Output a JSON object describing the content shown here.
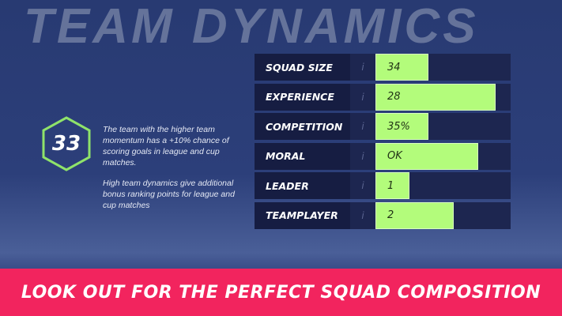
{
  "header": {
    "title": "TEAM DYNAMICS"
  },
  "score": {
    "value": "33",
    "ring_color": "#8fe36a"
  },
  "description": {
    "p1": "The team with the higher team momentum has a +10% chance of scoring goals in league and cup matches.",
    "p2": "High team dynamics give additional bonus ranking points for league and cup matches"
  },
  "stats": [
    {
      "label": "SQUAD SIZE",
      "info": "i",
      "value": "34",
      "fill": 0.39
    },
    {
      "label": "EXPERIENCE",
      "info": "i",
      "value": "28",
      "fill": 0.89
    },
    {
      "label": "COMPETITION",
      "info": "i",
      "value": "35%",
      "fill": 0.39
    },
    {
      "label": "MORAL",
      "info": "i",
      "value": "OK",
      "fill": 0.76
    },
    {
      "label": "LEADER",
      "info": "i",
      "value": "1",
      "fill": 0.25
    },
    {
      "label": "TEAMPLAYER",
      "info": "i",
      "value": "2",
      "fill": 0.58
    }
  ],
  "banner": {
    "text": "LOOK OUT FOR THE PERFECT SQUAD COMPOSITION",
    "color": "#f2245e"
  },
  "colors": {
    "bar": "#b3fc7b"
  }
}
